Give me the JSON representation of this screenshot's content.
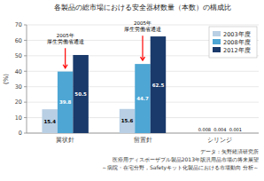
{
  "chart_data": {
    "type": "bar",
    "title": "各製品の総市場における安全器材数量（本数）の構成比",
    "ylabel": "(%)",
    "categories": [
      "翼状針",
      "留置針",
      "シリンジ"
    ],
    "series": [
      {
        "name": "2003年度",
        "color": "#b8cfe4",
        "values": [
          15.4,
          15.6,
          0.008
        ]
      },
      {
        "name": "2008年度",
        "color": "#4da6d4",
        "values": [
          39.8,
          44.7,
          0.004
        ]
      },
      {
        "name": "2012年度",
        "color": "#1a3a6b",
        "values": [
          50.5,
          62.5,
          0.001
        ]
      }
    ],
    "ylim": [
      0,
      70
    ],
    "yticks": [
      0,
      10,
      20,
      30,
      40,
      50,
      60,
      70
    ],
    "grid": true,
    "legend": "upper right",
    "data_labels": true,
    "annotations": [
      {
        "text": "2005年\n厚生労働省通達",
        "category": "翼状針",
        "y": 57,
        "arrow_from": 55,
        "arrow_to": 42,
        "color": "red"
      },
      {
        "text": "2005年\n厚生労働省通達",
        "category": "留置針",
        "y": 65,
        "arrow_from": 63,
        "arrow_to": 47,
        "color": "red"
      }
    ],
    "footnotes": [
      "データ：矢野経済研究所",
      "医療用ディスポーザブル製品2013年版汎用品市場の将来展望",
      "～病院・在宅分野，Safetyキット化製品における市場動向 分析～"
    ]
  }
}
